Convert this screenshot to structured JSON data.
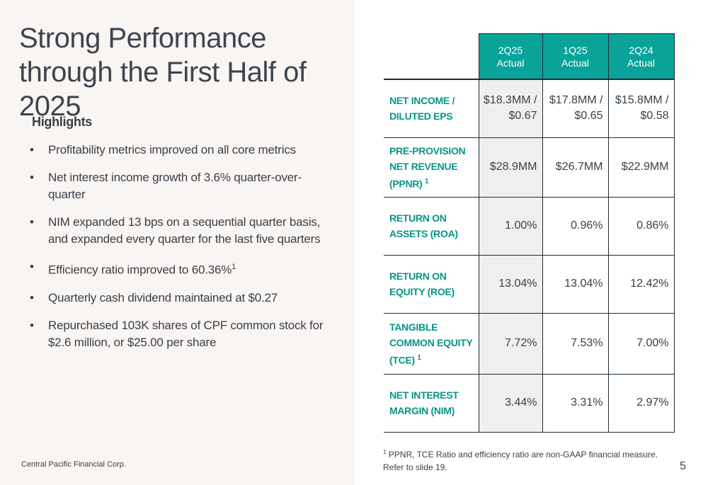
{
  "slide": {
    "title": "Strong Performance through the First Half of 2025",
    "highlights_heading": "Highlights",
    "bullets": [
      {
        "text": "Profitability metrics improved on all core metrics",
        "sup": ""
      },
      {
        "text": "Net interest income growth of 3.6% quarter-over-quarter",
        "sup": ""
      },
      {
        "text": "NIM expanded 13 bps on a sequential quarter basis, and expanded every quarter for the last five quarters",
        "sup": ""
      },
      {
        "text": "Efficiency ratio improved to 60.36%",
        "sup": "1"
      },
      {
        "text": "Quarterly cash dividend maintained at $0.27",
        "sup": ""
      },
      {
        "text": "Repurchased 103K shares of CPF common stock for $2.6 million, or $25.00 per share",
        "sup": ""
      }
    ],
    "bullet_glyph": "•",
    "company": "Central Pacific Financial Corp.",
    "page_number": "5"
  },
  "table": {
    "columns": [
      {
        "period": "2Q25",
        "basis": "Actual"
      },
      {
        "period": "1Q25",
        "basis": "Actual"
      },
      {
        "period": "2Q24",
        "basis": "Actual"
      }
    ],
    "rows": [
      {
        "label_lines": [
          "NET INCOME /",
          "DILUTED EPS"
        ],
        "sup": "",
        "values": [
          [
            "$18.3MM /",
            "$0.67"
          ],
          [
            "$17.8MM /",
            "$0.65"
          ],
          [
            "$15.8MM /",
            "$0.58"
          ]
        ]
      },
      {
        "label_lines": [
          "PRE-PROVISION",
          "NET REVENUE",
          "(PPNR)"
        ],
        "sup": "1",
        "values": [
          [
            "$28.9MM"
          ],
          [
            "$26.7MM"
          ],
          [
            "$22.9MM"
          ]
        ]
      },
      {
        "label_lines": [
          "RETURN ON",
          "ASSETS (ROA)"
        ],
        "sup": "",
        "values": [
          [
            "1.00%"
          ],
          [
            "0.96%"
          ],
          [
            "0.86%"
          ]
        ]
      },
      {
        "label_lines": [
          "RETURN ON",
          "EQUITY (ROE)"
        ],
        "sup": "",
        "values": [
          [
            "13.04%"
          ],
          [
            "13.04%"
          ],
          [
            "12.42%"
          ]
        ]
      },
      {
        "label_lines": [
          "TANGIBLE",
          "COMMON EQUITY",
          "(TCE)"
        ],
        "sup": "1",
        "values": [
          [
            "7.72%"
          ],
          [
            "7.53%"
          ],
          [
            "7.00%"
          ]
        ]
      },
      {
        "label_lines": [
          "NET INTEREST",
          "MARGIN (NIM)"
        ],
        "sup": "",
        "values": [
          [
            "3.44%"
          ],
          [
            "3.31%"
          ],
          [
            "2.97%"
          ]
        ]
      }
    ],
    "header_color": "#0aa39a",
    "label_color": "#079488"
  },
  "footnote": {
    "sup": "1",
    "text": "PPNR, TCE Ratio and efficiency ratio are non-GAAP financial measure. Refer to slide 19."
  }
}
